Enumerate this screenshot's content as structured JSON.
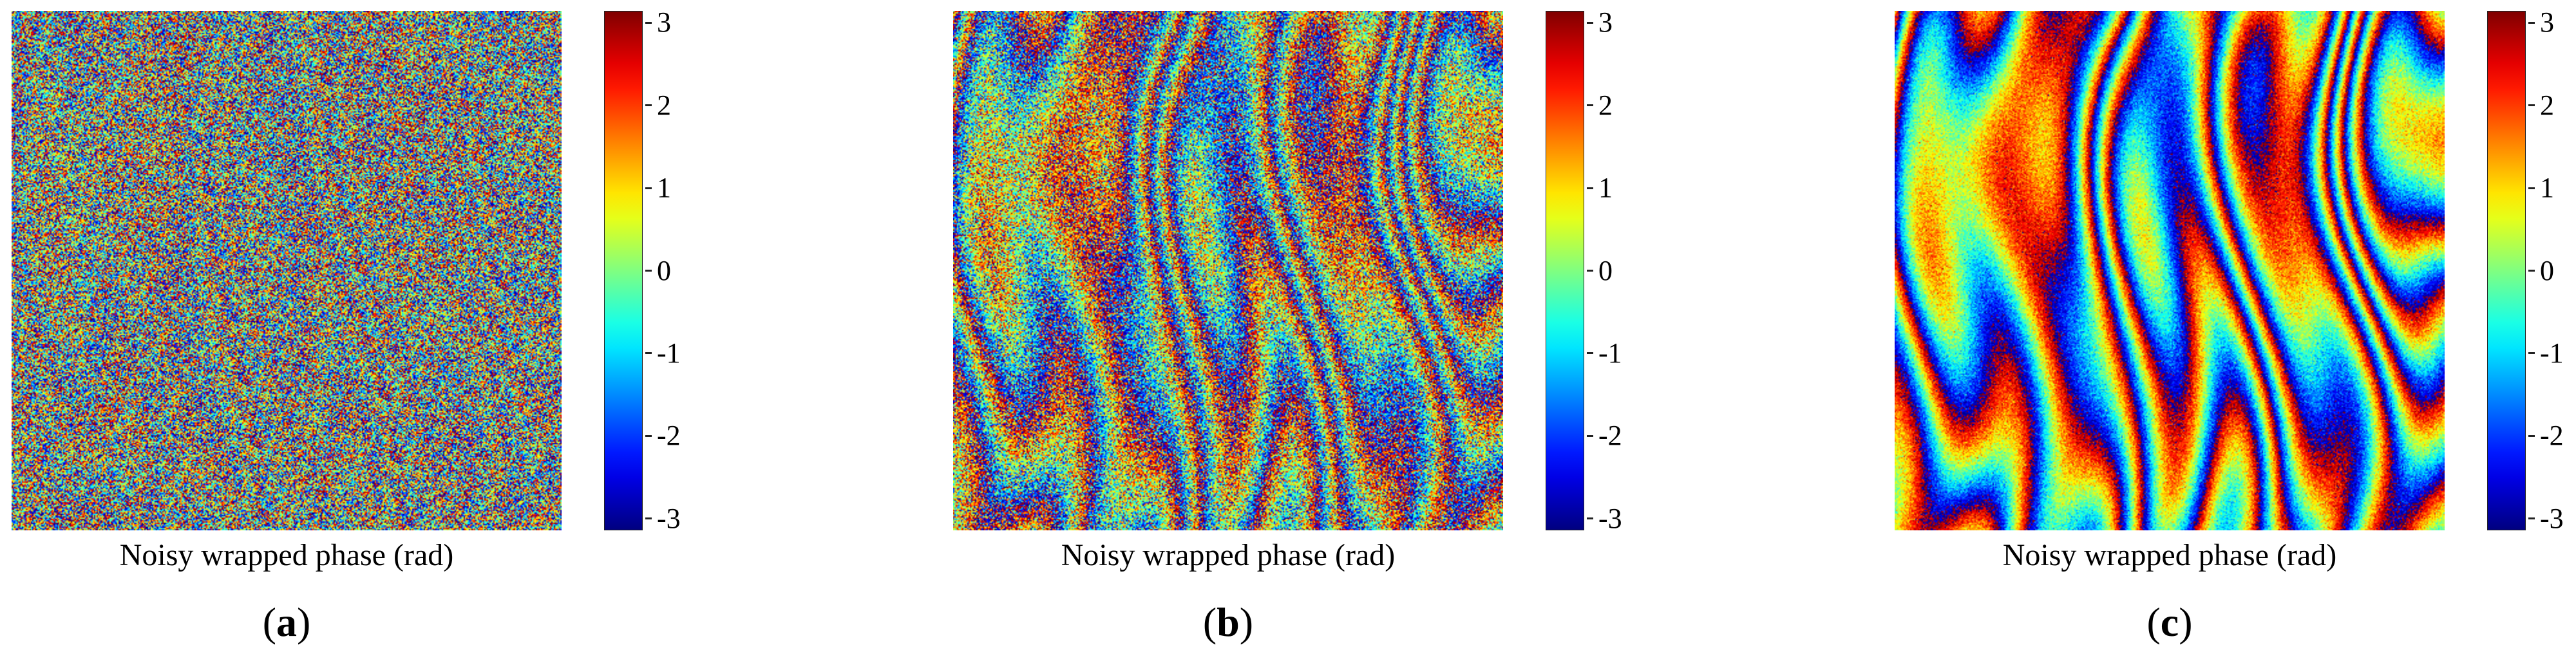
{
  "chart_data": [
    {
      "type": "heatmap",
      "subfigure_label": "(a)",
      "sublabel_parts": [
        "(",
        "a",
        ")"
      ],
      "xlabel": "Noisy wrapped phase (rad)",
      "colormap": "jet",
      "colorbar": {
        "vmin": -3.14159,
        "vmax": 3.14159,
        "ticks": [
          3,
          2,
          1,
          0,
          -1,
          -2,
          -3
        ]
      },
      "noise_level": 0.85
    },
    {
      "type": "heatmap",
      "subfigure_label": "(b)",
      "sublabel_parts": [
        "(",
        "b",
        ")"
      ],
      "xlabel": "Noisy wrapped phase (rad)",
      "colormap": "jet",
      "colorbar": {
        "vmin": -3.14159,
        "vmax": 3.14159,
        "ticks": [
          3,
          2,
          1,
          0,
          -1,
          -2,
          -3
        ]
      },
      "noise_level": 0.5
    },
    {
      "type": "heatmap",
      "subfigure_label": "(c)",
      "sublabel_parts": [
        "(",
        "c",
        ")"
      ],
      "xlabel": "Noisy wrapped phase (rad)",
      "colormap": "jet",
      "colorbar": {
        "vmin": -3.14159,
        "vmax": 3.14159,
        "ticks": [
          3,
          2,
          1,
          0,
          -1,
          -2,
          -3
        ]
      },
      "noise_level": 0.15
    }
  ]
}
